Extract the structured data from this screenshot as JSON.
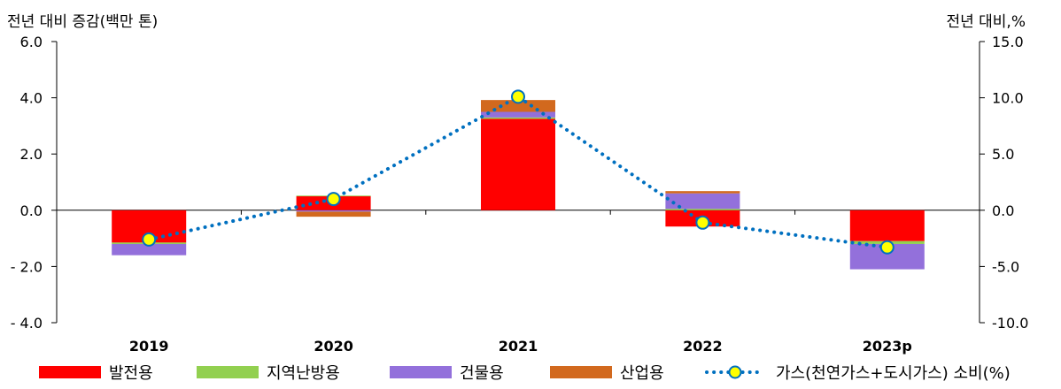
{
  "chart_data": {
    "type": "bar",
    "stacked": true,
    "categories": [
      "2019",
      "2020",
      "2021",
      "2022",
      "2023p"
    ],
    "y_left": {
      "label": "전년 대비 증감(백만 톤)",
      "range": [
        -4.0,
        6.0
      ],
      "ticks": [
        6.0,
        4.0,
        2.0,
        0.0,
        -2.0,
        -4.0
      ],
      "tick_labels": [
        "6.0",
        "4.0",
        "2.0",
        "0.0",
        "- 2.0",
        "- 4.0"
      ]
    },
    "y_right": {
      "label": "전년 대비,%",
      "range": [
        -10.0,
        15.0
      ],
      "ticks": [
        15.0,
        10.0,
        5.0,
        0.0,
        -5.0,
        -10.0
      ],
      "tick_labels": [
        "15.0",
        "10.0",
        "5.0",
        "0.0",
        "-5.0",
        "-10.0"
      ]
    },
    "series": [
      {
        "name": "발전용",
        "color": "#ff0000",
        "values": [
          -1.15,
          0.5,
          3.25,
          -0.58,
          -1.1
        ]
      },
      {
        "name": "지역난방용",
        "color": "#92d050",
        "values": [
          -0.05,
          0.02,
          0.05,
          0.05,
          -0.1
        ]
      },
      {
        "name": "건물용",
        "color": "#9370db",
        "values": [
          -0.4,
          -0.05,
          0.2,
          0.55,
          -0.9
        ]
      },
      {
        "name": "산업용",
        "color": "#d2691e",
        "values": [
          0.0,
          -0.18,
          0.42,
          0.08,
          0.0
        ]
      }
    ],
    "line_series": {
      "name": "가스(천연가스+도시가스) 소비(%)",
      "axis": "right",
      "color": "#0070c0",
      "marker_fill": "#ffff00",
      "values": [
        -2.6,
        1.0,
        10.1,
        -1.1,
        -3.3
      ]
    },
    "grid": false,
    "legend_position": "bottom"
  }
}
